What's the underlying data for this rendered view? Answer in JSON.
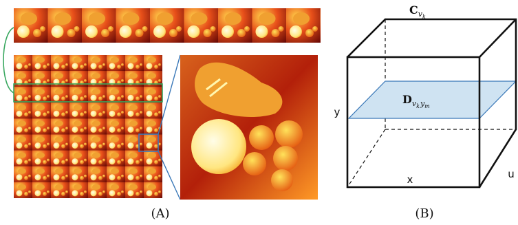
{
  "panel_a": {
    "caption": "(A)"
  },
  "panel_b": {
    "caption": "(B)",
    "cube_label": {
      "base": "C",
      "subscript": "v",
      "sub_subscript": "k"
    },
    "plane_label": {
      "base": "D",
      "subscript_1": "v",
      "sub_subscript_1": "k",
      "subscript_2": "y",
      "sub_subscript_2": "m"
    },
    "axes": {
      "y": "y",
      "x": "x",
      "u": "u"
    }
  }
}
